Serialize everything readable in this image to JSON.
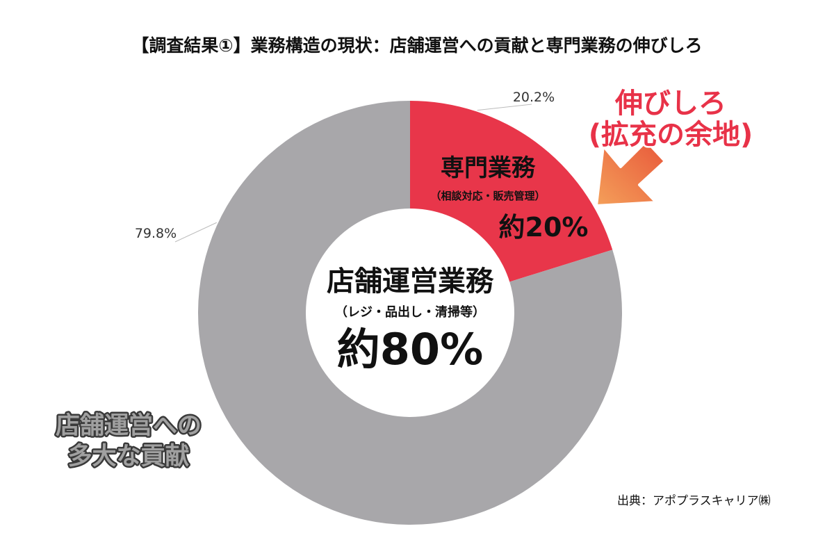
{
  "title": "【調査結果①】業務構造の現状：店舗運営への貢献と専門業務の伸びしろ",
  "source": "出典：アポプラスキャリア㈱",
  "colors": {
    "store_ops": "#a8a7aa",
    "specialized": "#e8364a",
    "arrow_start": "#f4a05a",
    "arrow_end": "#e8573a",
    "callout_text": "#e83248",
    "callout_gray": "#a0a0a0"
  },
  "chart_data": {
    "type": "pie",
    "style": "donut",
    "title": "【調査結果①】業務構造の現状：店舗運営への貢献と専門業務の伸びしろ",
    "slices": [
      {
        "label": "専門業務",
        "sublabel": "（相談対応・販売管理）",
        "approx_label": "約20%",
        "value": 20.2,
        "value_label": "20.2%",
        "color": "#e8364a"
      },
      {
        "label": "店舗運営業務",
        "sublabel": "（レジ・品出し・清掃等）",
        "approx_label": "約80%",
        "value": 79.8,
        "value_label": "79.8%",
        "color": "#a8a7aa"
      }
    ]
  },
  "callouts": {
    "growth_line1": "伸びしろ",
    "growth_line2": "(拡充の余地)",
    "contribution_line1": "店舗運営への",
    "contribution_line2": "多大な貢献"
  }
}
